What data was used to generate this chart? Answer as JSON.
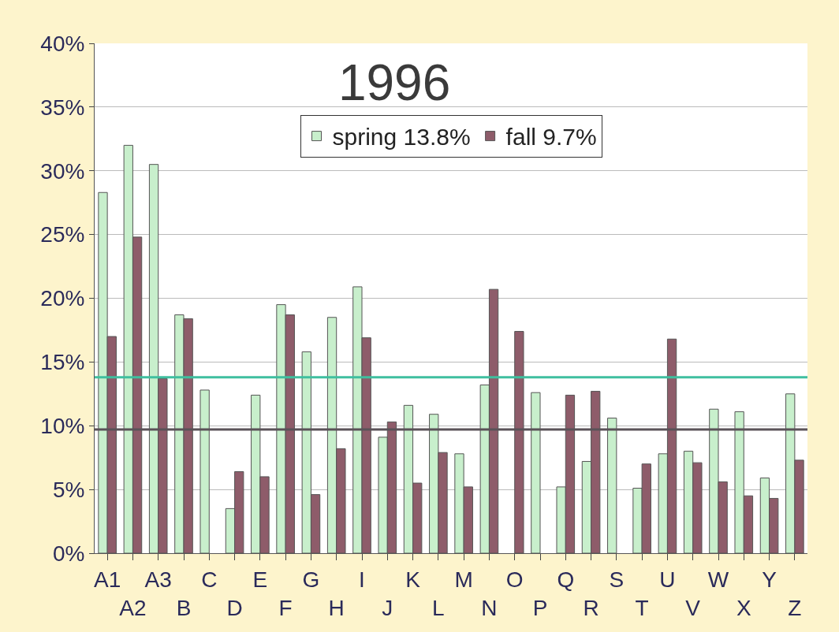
{
  "chart_data": {
    "type": "bar",
    "title": "1996",
    "categories": [
      "A1",
      "A2",
      "A3",
      "B",
      "C",
      "D",
      "E",
      "F",
      "G",
      "H",
      "I",
      "J",
      "K",
      "L",
      "M",
      "N",
      "O",
      "P",
      "Q",
      "R",
      "S",
      "T",
      "U",
      "V",
      "W",
      "X",
      "Y",
      "Z"
    ],
    "series": [
      {
        "name": "spring 13.8%",
        "color": "#c8efcc",
        "values": [
          28.3,
          32.0,
          30.5,
          18.7,
          12.8,
          3.5,
          12.4,
          19.5,
          15.8,
          18.5,
          20.9,
          9.1,
          11.6,
          10.9,
          7.8,
          13.2,
          null,
          12.6,
          5.2,
          7.2,
          10.6,
          5.1,
          7.8,
          8.0,
          11.3,
          11.1,
          5.9,
          12.5
        ]
      },
      {
        "name": "fall 9.7%",
        "color": "#8e5c6a",
        "values": [
          17.0,
          24.8,
          13.7,
          18.4,
          null,
          6.4,
          6.0,
          18.7,
          4.6,
          8.2,
          16.9,
          10.3,
          5.5,
          7.9,
          5.2,
          20.7,
          17.4,
          null,
          12.4,
          12.7,
          null,
          7.0,
          16.8,
          7.1,
          5.6,
          4.5,
          4.3,
          7.3
        ]
      }
    ],
    "ylim": [
      0,
      40
    ],
    "yticks": [
      {
        "value": 0,
        "label": "0%"
      },
      {
        "value": 5,
        "label": "5%"
      },
      {
        "value": 10,
        "label": "10%"
      },
      {
        "value": 15,
        "label": "15%"
      },
      {
        "value": 20,
        "label": "20%"
      },
      {
        "value": 25,
        "label": "25%"
      },
      {
        "value": 30,
        "label": "30%"
      },
      {
        "value": 35,
        "label": "35%"
      },
      {
        "value": 40,
        "label": "40%"
      }
    ],
    "ref_lines": [
      {
        "axis": "y",
        "value": 13.8,
        "color": "#3fbf9f"
      },
      {
        "axis": "y",
        "value": 9.7,
        "color": "#5a5258"
      }
    ],
    "grid": "y",
    "legend": "top"
  }
}
